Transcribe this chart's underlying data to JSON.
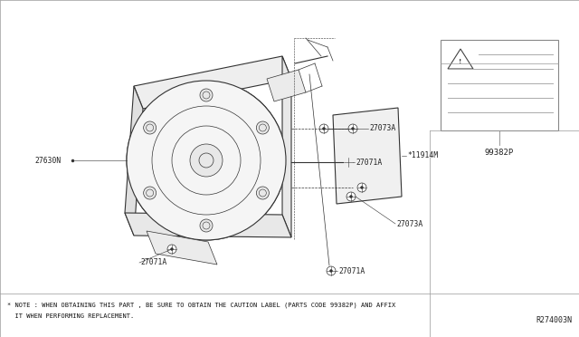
{
  "bg_color": "#ffffff",
  "fig_width": 6.4,
  "fig_height": 3.72,
  "dpi": 100,
  "note_line1": "* NOTE : WHEN OBTAINING THIS PART , BE SURE TO OBTAIN THE CAUTION LABEL (PARTS CODE 99382P) AND AFFIX",
  "note_line2": "  IT WHEN PERFORMING REPLACEMENT.",
  "ref_code": "R274003N",
  "label_99382P": "99382P",
  "lc": "#333333",
  "lc2": "#666666"
}
